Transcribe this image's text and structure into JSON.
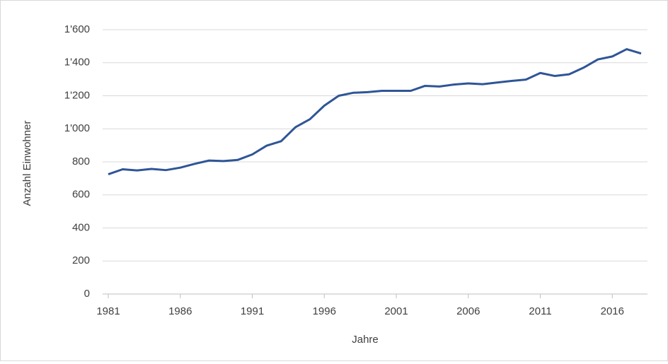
{
  "chart_data": {
    "type": "line",
    "x_label": "Jahre",
    "y_label": "Anzahl Einwohner",
    "x": [
      1981,
      1982,
      1983,
      1984,
      1985,
      1986,
      1987,
      1988,
      1989,
      1990,
      1991,
      1992,
      1993,
      1994,
      1995,
      1996,
      1997,
      1998,
      1999,
      2000,
      2001,
      2002,
      2003,
      2004,
      2005,
      2006,
      2007,
      2008,
      2009,
      2010,
      2011,
      2012,
      2013,
      2014,
      2015,
      2016,
      2017,
      2018
    ],
    "series": [
      {
        "name": "Anzahl Einwohner",
        "color": "#2f5597",
        "values": [
          725,
          755,
          748,
          757,
          750,
          765,
          788,
          808,
          805,
          812,
          845,
          898,
          925,
          1010,
          1058,
          1140,
          1200,
          1218,
          1222,
          1230,
          1230,
          1230,
          1260,
          1256,
          1268,
          1275,
          1270,
          1280,
          1290,
          1298,
          1338,
          1320,
          1330,
          1370,
          1420,
          1438,
          1482,
          1456
        ]
      }
    ],
    "xlim": [
      1981,
      2018
    ],
    "xticks": [
      1981,
      1986,
      1991,
      1996,
      2001,
      2006,
      2011,
      2016
    ],
    "ylim": [
      0,
      1600
    ],
    "yticks": [
      0,
      200,
      400,
      600,
      800,
      {
        "value": 1000,
        "label": "1'000"
      },
      {
        "value": 1200,
        "label": "1'200"
      },
      {
        "value": 1400,
        "label": "1'400"
      },
      {
        "value": 1600,
        "label": "1'600"
      }
    ],
    "grid": true
  }
}
